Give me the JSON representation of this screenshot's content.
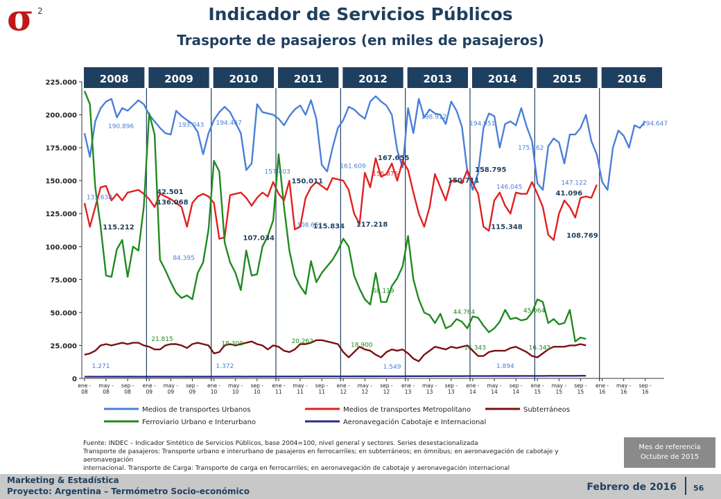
{
  "header": {
    "logo_symbol": "σ",
    "logo_superscript": "2",
    "title": "Indicador de Servicios Públicos",
    "subtitle": "Trasporte de pasajeros (en miles de pasajeros)"
  },
  "chart_data": {
    "type": "line",
    "ylim": [
      0,
      225000
    ],
    "yticks": [
      "0",
      "25.000",
      "50.000",
      "75.000",
      "100.000",
      "125.000",
      "150.000",
      "175.000",
      "200.000",
      "225.000"
    ],
    "grid": false,
    "legend_position": "bottom",
    "year_labels": [
      "2008",
      "2009",
      "2010",
      "2011",
      "2012",
      "2013",
      "2014",
      "2015",
      "2016"
    ],
    "x_tick_labels": [
      "ene-08",
      "may-08",
      "sep-08",
      "ene-09",
      "may-09",
      "sep-09",
      "ene-10",
      "may-10",
      "sep-10",
      "ene-11",
      "may-11",
      "sep-11",
      "ene-12",
      "may-12",
      "sep-12",
      "ene-13",
      "may-13",
      "sep-13",
      "ene-14",
      "may-14",
      "sep-14",
      "ene-15",
      "may-15",
      "sep-15",
      "ene-16",
      "may-16",
      "sep-16"
    ],
    "total_months": 108,
    "colors": {
      "urbanos": "#4a7fd9",
      "metropolitano": "#e02020",
      "subterraneos": "#7a1010",
      "ferroviario": "#1f8a1f",
      "aeronavegacion": "#2a2a8a",
      "year_box": "#1f3f5f"
    },
    "series": [
      {
        "name": "Medios de transportes Urbanos",
        "color": "#4a7fd9",
        "values": [
          186000,
          168000,
          195000,
          205000,
          210000,
          212000,
          198000,
          205000,
          203000,
          207000,
          211000,
          208000,
          200000,
          195000,
          190000,
          186000,
          185000,
          203000,
          199000,
          196000,
          193000,
          187000,
          170000,
          186000,
          196000,
          202000,
          206000,
          202000,
          194000,
          186000,
          158000,
          163000,
          208000,
          202000,
          201000,
          200000,
          197000,
          192000,
          199000,
          204000,
          207000,
          200000,
          211000,
          197000,
          162000,
          157000,
          175000,
          190000,
          196000,
          206000,
          204000,
          200000,
          197000,
          210000,
          214000,
          210000,
          207000,
          200000,
          173000,
          160000,
          205000,
          186000,
          212000,
          198000,
          204000,
          201000,
          200000,
          193000,
          210000,
          203000,
          191000,
          157000,
          143000,
          156000,
          190000,
          201000,
          199000,
          175000,
          193000,
          195000,
          192000,
          205000,
          191000,
          180000,
          148000,
          143000,
          176000,
          182000,
          179000,
          163000,
          185000,
          185000,
          190000,
          200000,
          180000,
          170000,
          149000,
          143000,
          175000,
          188000,
          184000,
          175000,
          192000,
          190000,
          195000,
          null,
          null,
          null
        ]
      },
      {
        "name": "Medios de transportes Metropolitano",
        "color": "#e02020",
        "values": [
          133000,
          115000,
          130000,
          145000,
          146000,
          135000,
          140000,
          135000,
          141000,
          142000,
          143000,
          140000,
          136000,
          130000,
          140000,
          138000,
          136000,
          133000,
          130000,
          115000,
          133000,
          138000,
          140000,
          138000,
          133000,
          106000,
          107000,
          139000,
          140000,
          141000,
          137000,
          131000,
          137000,
          141000,
          138000,
          149000,
          140000,
          135000,
          150000,
          113000,
          115000,
          137000,
          145000,
          149000,
          146000,
          143000,
          152000,
          151000,
          150000,
          143000,
          125000,
          117000,
          156000,
          145000,
          167000,
          153000,
          155000,
          163000,
          150000,
          165000,
          158000,
          141000,
          125000,
          115000,
          130000,
          155000,
          145000,
          135000,
          150000,
          150000,
          148000,
          158000,
          148000,
          140000,
          115000,
          112000,
          135000,
          141000,
          131000,
          125000,
          141000,
          140000,
          140000,
          149000,
          140000,
          130000,
          109000,
          105000,
          125000,
          135000,
          130000,
          122000,
          137000,
          138000,
          137000,
          147000,
          null,
          null,
          null,
          null,
          null,
          null,
          null,
          null,
          null,
          null,
          null,
          null
        ]
      },
      {
        "name": "Subterráneos",
        "color": "#7a1010",
        "values": [
          18000,
          19000,
          21000,
          25000,
          26000,
          25000,
          26000,
          27000,
          26000,
          27000,
          27000,
          25000,
          24000,
          22000,
          22000,
          25000,
          26000,
          26000,
          25000,
          23000,
          26000,
          27000,
          26000,
          25000,
          19000,
          20000,
          25000,
          26000,
          25000,
          26000,
          27000,
          28000,
          26000,
          25000,
          22000,
          25000,
          24000,
          21000,
          20000,
          22000,
          26000,
          26000,
          27000,
          29000,
          29000,
          28000,
          27000,
          26000,
          20000,
          16000,
          20000,
          24000,
          22000,
          21000,
          18000,
          16000,
          20000,
          22000,
          21000,
          22000,
          19000,
          15000,
          13000,
          18000,
          21000,
          24000,
          23000,
          22000,
          24000,
          23000,
          24000,
          25000,
          21000,
          17000,
          17000,
          20000,
          21000,
          21000,
          21000,
          23000,
          24000,
          22000,
          20000,
          17000,
          16000,
          19000,
          22000,
          24000,
          24000,
          24000,
          25000,
          25000,
          26000,
          25000,
          null,
          null,
          null,
          null,
          null,
          null,
          null,
          null,
          null,
          null,
          null,
          null,
          null,
          null
        ]
      },
      {
        "name": "Ferroviario Urbano e Interurbano",
        "color": "#1f8a1f",
        "values": [
          218000,
          208000,
          145000,
          115000,
          78000,
          77000,
          98000,
          105000,
          77000,
          100000,
          97000,
          130000,
          201000,
          185000,
          90000,
          82000,
          73000,
          65000,
          61000,
          63000,
          60000,
          80000,
          88000,
          113000,
          165000,
          157000,
          103000,
          88000,
          80000,
          67000,
          97000,
          78000,
          79000,
          100000,
          108000,
          120000,
          170000,
          130000,
          97000,
          78000,
          70000,
          64000,
          89000,
          73000,
          80000,
          85000,
          90000,
          97000,
          106000,
          100000,
          78000,
          68000,
          60000,
          56000,
          80000,
          58000,
          58000,
          70000,
          76000,
          85000,
          108000,
          75000,
          60000,
          50000,
          48000,
          42000,
          49000,
          38000,
          40000,
          45000,
          43000,
          38000,
          47000,
          46000,
          40000,
          35000,
          38000,
          43000,
          52000,
          45000,
          46000,
          44000,
          45000,
          50000,
          60000,
          58000,
          42000,
          45000,
          41000,
          42000,
          52000,
          28000,
          31000,
          30000,
          null,
          null,
          null,
          null,
          null,
          null,
          null,
          null,
          null,
          null,
          null,
          null,
          null,
          null
        ]
      },
      {
        "name": "Aeronavegación Cabotaje e Internacional",
        "color": "#2a2a8a",
        "values": [
          1271,
          1300,
          1280,
          1250,
          1300,
          1320,
          1290,
          1280,
          1300,
          1310,
          1280,
          1290,
          1300,
          1320,
          1290,
          1310,
          1300,
          1280,
          1290,
          1310,
          1300,
          1320,
          1330,
          1340,
          1372,
          1360,
          1380,
          1390,
          1400,
          1420,
          1380,
          1400,
          1410,
          1420,
          1430,
          1440,
          1450,
          1460,
          1470,
          1480,
          1490,
          1500,
          1510,
          1520,
          1530,
          1540,
          1540,
          1545,
          1549,
          1550,
          1560,
          1570,
          1580,
          1590,
          1600,
          1610,
          1620,
          1630,
          1640,
          1650,
          1660,
          1670,
          1680,
          1690,
          1700,
          1710,
          1720,
          1730,
          1740,
          1750,
          1760,
          1770,
          1780,
          1790,
          1800,
          1810,
          1820,
          1830,
          1840,
          1850,
          1860,
          1870,
          1880,
          1894,
          1900,
          1910,
          1920,
          1930,
          1940,
          1950,
          1960,
          1970,
          1980,
          1990,
          null,
          null,
          null,
          null,
          null,
          null,
          null,
          null,
          null,
          null,
          null,
          null,
          null,
          null
        ]
      }
    ],
    "annotations": [
      {
        "text": "190.896",
        "x": 4,
        "y": 192000,
        "color": "#4a7fd9",
        "bold": false
      },
      {
        "text": "193.043",
        "x": 17,
        "y": 193000,
        "color": "#4a7fd9",
        "bold": false
      },
      {
        "text": "194.467",
        "x": 24,
        "y": 194500,
        "color": "#4a7fd9",
        "bold": false
      },
      {
        "text": "157.403",
        "x": 33,
        "y": 157400,
        "color": "#4a7fd9",
        "bold": false
      },
      {
        "text": "161.609",
        "x": 47,
        "y": 161600,
        "color": "#4a7fd9",
        "bold": false
      },
      {
        "text": "108.651",
        "x": 39,
        "y": 117000,
        "color": "#4a7fd9",
        "bold": false
      },
      {
        "text": "84.395",
        "x": 16,
        "y": 92000,
        "color": "#4a7fd9",
        "bold": false
      },
      {
        "text": "60.119",
        "x": 53,
        "y": 67000,
        "color": "#1f8a1f",
        "bold": false
      },
      {
        "text": "44.764",
        "x": 68,
        "y": 51000,
        "color": "#1f8a1f",
        "bold": false
      },
      {
        "text": "45.064",
        "x": 81,
        "y": 52000,
        "color": "#1f8a1f",
        "bold": false
      },
      {
        "text": "198.912",
        "x": 62,
        "y": 198900,
        "color": "#4a7fd9",
        "bold": false
      },
      {
        "text": "194.951",
        "x": 71,
        "y": 194000,
        "color": "#4a7fd9",
        "bold": false
      },
      {
        "text": "175.462",
        "x": 80,
        "y": 175500,
        "color": "#4a7fd9",
        "bold": false
      },
      {
        "text": "194.647",
        "x": 103,
        "y": 194000,
        "color": "#4a7fd9",
        "bold": false
      },
      {
        "text": "147.122",
        "x": 88,
        "y": 149000,
        "color": "#4a7fd9",
        "bold": false
      },
      {
        "text": "146.045",
        "x": 76,
        "y": 146000,
        "color": "#4a7fd9",
        "bold": false
      },
      {
        "text": "156.876",
        "x": 53,
        "y": 156000,
        "color": "#e02020",
        "bold": false
      },
      {
        "text": "131.638",
        "x": 0,
        "y": 138000,
        "color": "#4a7fd9",
        "bold": false
      },
      {
        "text": "115.212",
        "x": 3,
        "y": 115000,
        "color": "#1f3f5f",
        "bold": true
      },
      {
        "text": "42.501",
        "x": 13,
        "y": 142000,
        "color": "#1f3f5f",
        "bold": true
      },
      {
        "text": "136.068",
        "x": 13,
        "y": 134000,
        "color": "#1f3f5f",
        "bold": true
      },
      {
        "text": "107.034",
        "x": 29,
        "y": 107000,
        "color": "#1f3f5f",
        "bold": true
      },
      {
        "text": "150.011",
        "x": 38,
        "y": 150000,
        "color": "#1f3f5f",
        "bold": true
      },
      {
        "text": "115.834",
        "x": 42,
        "y": 116000,
        "color": "#1f3f5f",
        "bold": true
      },
      {
        "text": "167.655",
        "x": 54,
        "y": 167600,
        "color": "#1f3f5f",
        "bold": true
      },
      {
        "text": "117.218",
        "x": 50,
        "y": 117200,
        "color": "#1f3f5f",
        "bold": true
      },
      {
        "text": "150.711",
        "x": 67,
        "y": 150700,
        "color": "#1f3f5f",
        "bold": true
      },
      {
        "text": "158.795",
        "x": 72,
        "y": 158800,
        "color": "#1f3f5f",
        "bold": true
      },
      {
        "text": "115.348",
        "x": 75,
        "y": 115300,
        "color": "#1f3f5f",
        "bold": true
      },
      {
        "text": "41.096",
        "x": 87,
        "y": 141000,
        "color": "#1f3f5f",
        "bold": true
      },
      {
        "text": "108.769",
        "x": 89,
        "y": 108800,
        "color": "#1f3f5f",
        "bold": true
      },
      {
        "text": "21.815",
        "x": 12,
        "y": 30500,
        "color": "#1f8a1f",
        "bold": false
      },
      {
        "text": "18.300",
        "x": 25,
        "y": 27000,
        "color": "#1f8a1f",
        "bold": false
      },
      {
        "text": "20.262",
        "x": 38,
        "y": 29000,
        "color": "#1f8a1f",
        "bold": false
      },
      {
        "text": "18.900",
        "x": 49,
        "y": 26000,
        "color": "#1f8a1f",
        "bold": false
      },
      {
        "text": "16.343",
        "x": 70,
        "y": 24000,
        "color": "#1f8a1f",
        "bold": false
      },
      {
        "text": "16.343",
        "x": 82,
        "y": 24000,
        "color": "#1f8a1f",
        "bold": false
      },
      {
        "text": "1.271",
        "x": 1,
        "y": 10000,
        "color": "#4a7fd9",
        "bold": false
      },
      {
        "text": "1.372",
        "x": 24,
        "y": 10000,
        "color": "#4a7fd9",
        "bold": false
      },
      {
        "text": "1.549",
        "x": 55,
        "y": 9500,
        "color": "#4a7fd9",
        "bold": false
      },
      {
        "text": "1.894",
        "x": 76,
        "y": 10000,
        "color": "#4a7fd9",
        "bold": false
      }
    ]
  },
  "footnote": {
    "line1": "Fuente: INDEC – Indicador Sintético de Servicios Públicos, base 2004=100, nivel general y sectores. Series desestacionalizada",
    "line2": "Transporte de pasajeros: Transporte urbano e interurbano de pasajeros en ferrocarriles; en subterráneos; en ómnibus; en aeronavegación de cabotaje y aeronavegación",
    "line3": "internacional.  Transporte de Carga: Transporte de carga en ferrocarriles; en aeronavegación de cabotaje y aeronavegación internacional"
  },
  "reference_box": {
    "line1": "Mes de referencia",
    "line2": "Octubre de 2015"
  },
  "footer": {
    "org": "Marketing & Estadística",
    "project": "Proyecto: Argentina – Termómetro Socio-económico",
    "date": "Febrero de 2016",
    "page": "56"
  }
}
